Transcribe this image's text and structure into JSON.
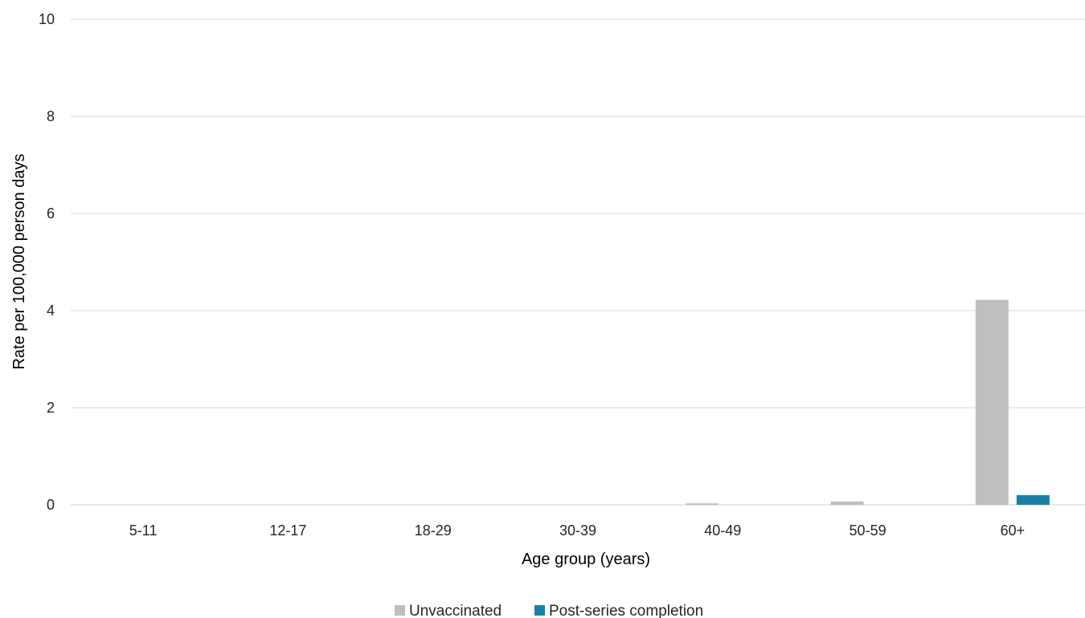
{
  "chart_data": {
    "type": "bar",
    "categories": [
      "5-11",
      "12-17",
      "18-29",
      "30-39",
      "40-49",
      "50-59",
      "60+"
    ],
    "series": [
      {
        "name": "Unvaccinated",
        "color": "#bfbfbf",
        "values": [
          0,
          0,
          0,
          0,
          0.03,
          0.07,
          4.22
        ]
      },
      {
        "name": "Post-series completion",
        "color": "#1a80a8",
        "values": [
          0,
          0,
          0,
          0,
          0,
          0,
          0.2
        ]
      }
    ],
    "title": "",
    "xlabel": "Age group (years)",
    "ylabel": "Rate per 100,000 person days",
    "ylim": [
      0,
      10
    ],
    "yticks": [
      0,
      2,
      4,
      6,
      8,
      10
    ],
    "grid": true,
    "legend_position": "bottom"
  }
}
